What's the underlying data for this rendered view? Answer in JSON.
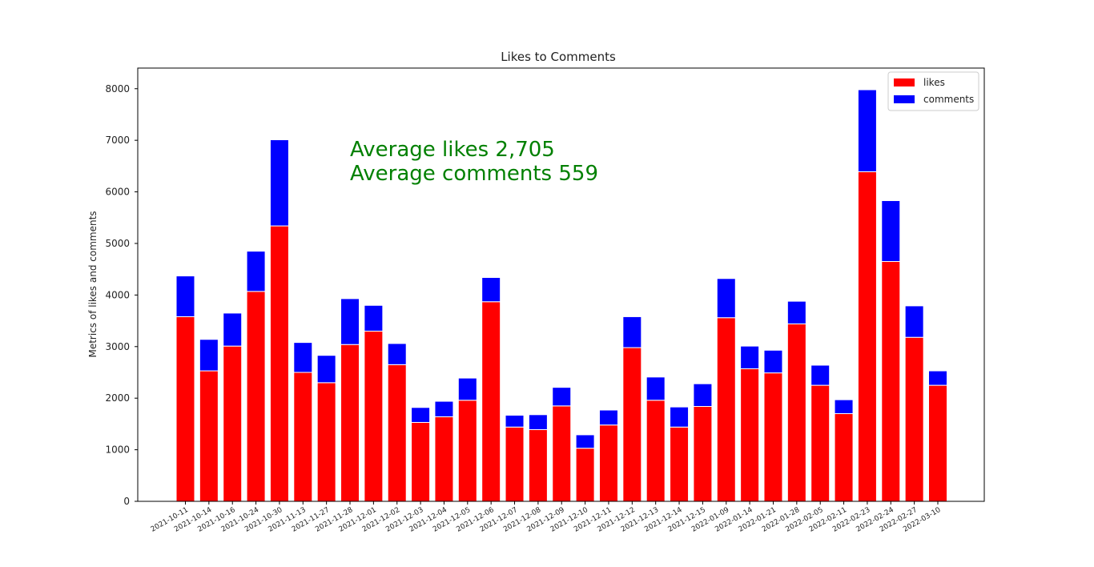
{
  "chart_data": {
    "type": "bar",
    "stacked": true,
    "title": "Likes to Comments",
    "xlabel": "",
    "ylabel": "Metrics of likes and comments",
    "ylim": [
      0,
      8400
    ],
    "yticks": [
      0,
      1000,
      2000,
      3000,
      4000,
      5000,
      6000,
      7000,
      8000
    ],
    "grid": false,
    "legend_position": "top-right",
    "categories": [
      "2021-10-11",
      "2021-10-14",
      "2021-10-16",
      "2021-10-24",
      "2021-10-30",
      "2021-11-13",
      "2021-11-27",
      "2021-11-28",
      "2021-12-01",
      "2021-12-02",
      "2021-12-03",
      "2021-12-04",
      "2021-12-05",
      "2021-12-06",
      "2021-12-07",
      "2021-12-08",
      "2021-12-09",
      "2021-12-10",
      "2021-12-11",
      "2021-12-12",
      "2021-12-13",
      "2021-12-14",
      "2021-12-15",
      "2022-01-09",
      "2022-01-14",
      "2022-01-21",
      "2022-01-28",
      "2022-02-05",
      "2022-02-11",
      "2022-02-23",
      "2022-02-24",
      "2022-02-27",
      "2022-03-10"
    ],
    "series": [
      {
        "name": "likes",
        "color": "#ff0000",
        "values": [
          3580,
          2530,
          3010,
          4070,
          5340,
          2500,
          2300,
          3040,
          3300,
          2650,
          1530,
          1640,
          1960,
          3870,
          1440,
          1390,
          1850,
          1030,
          1480,
          2980,
          1960,
          1440,
          1840,
          3560,
          2570,
          2490,
          3440,
          2250,
          1700,
          6390,
          4650,
          3180,
          2250
        ]
      },
      {
        "name": "comments",
        "color": "#0000ff",
        "values": [
          790,
          610,
          640,
          780,
          1670,
          580,
          530,
          890,
          500,
          410,
          290,
          300,
          430,
          470,
          230,
          290,
          360,
          260,
          290,
          600,
          450,
          390,
          440,
          760,
          440,
          440,
          440,
          390,
          270,
          1590,
          1180,
          610,
          280
        ]
      }
    ],
    "annotations": [
      "Average likes 2,705",
      "Average comments 559"
    ]
  }
}
